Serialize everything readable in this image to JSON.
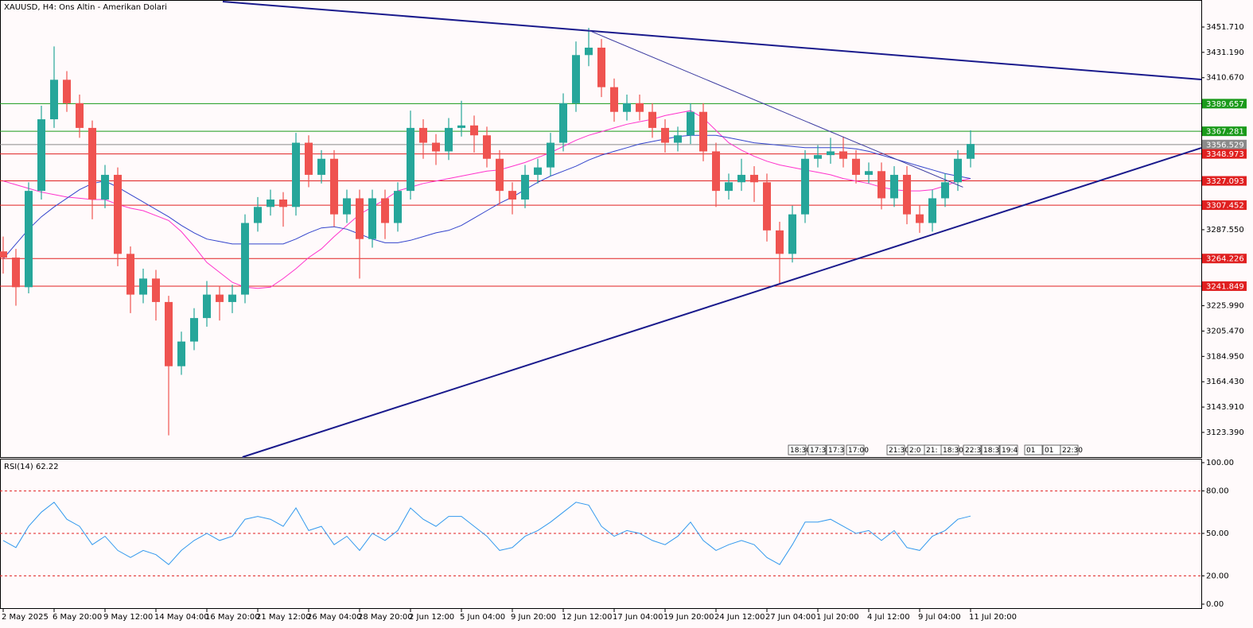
{
  "chart_data": {
    "type": "candlestick",
    "title": "XAUUSD, H4:  Ons Altin - Amerikan Dolari",
    "categories": [
      "2 May 2025",
      null,
      null,
      null,
      "6 May 20:00",
      null,
      null,
      null,
      "9 May 12:00",
      null,
      null,
      null,
      "14 May 04:00",
      null,
      null,
      null,
      "16 May 20:00",
      null,
      null,
      null,
      "21 May 12:00",
      null,
      null,
      null,
      "26 May 04:00",
      null,
      null,
      null,
      "28 May 20:00",
      null,
      null,
      null,
      "2 Jun 12:00",
      null,
      null,
      null,
      "5 Jun 04:00",
      null,
      null,
      null,
      "9 Jun 20:00",
      null,
      null,
      null,
      "12 Jun 12:00",
      null,
      null,
      null,
      "17 Jun 04:00",
      null,
      null,
      null,
      "19 Jun 20:00",
      null,
      null,
      null,
      "24 Jun 12:00",
      null,
      null,
      null,
      "27 Jun 04:00",
      null,
      null,
      null,
      "1 Jul 20:00",
      null,
      null,
      null,
      "4 Jul 12:00",
      null,
      null,
      null,
      "9 Jul 04:00",
      null,
      null,
      null,
      "11 Jul 20:00"
    ],
    "ohlc": [
      [
        3270,
        3282,
        3252,
        3265
      ],
      [
        3265,
        3272,
        3226,
        3241
      ],
      [
        3241,
        3326,
        3236,
        3319
      ],
      [
        3319,
        3388,
        3312,
        3377
      ],
      [
        3377,
        3436,
        3370,
        3409
      ],
      [
        3409,
        3416,
        3383,
        3390
      ],
      [
        3390,
        3397,
        3362,
        3370
      ],
      [
        3370,
        3376,
        3296,
        3312
      ],
      [
        3312,
        3340,
        3305,
        3332
      ],
      [
        3332,
        3338,
        3258,
        3268
      ],
      [
        3268,
        3274,
        3220,
        3235
      ],
      [
        3235,
        3256,
        3228,
        3248
      ],
      [
        3248,
        3255,
        3214,
        3229
      ],
      [
        3229,
        3234,
        3121,
        3177
      ],
      [
        3177,
        3205,
        3170,
        3197
      ],
      [
        3197,
        3224,
        3190,
        3216
      ],
      [
        3216,
        3246,
        3209,
        3235
      ],
      [
        3235,
        3242,
        3214,
        3229
      ],
      [
        3229,
        3243,
        3220,
        3235
      ],
      [
        3235,
        3300,
        3228,
        3293
      ],
      [
        3293,
        3314,
        3286,
        3306
      ],
      [
        3306,
        3320,
        3299,
        3312
      ],
      [
        3312,
        3318,
        3290,
        3306
      ],
      [
        3306,
        3366,
        3299,
        3358
      ],
      [
        3358,
        3364,
        3322,
        3332
      ],
      [
        3332,
        3352,
        3325,
        3345
      ],
      [
        3345,
        3352,
        3290,
        3300
      ],
      [
        3300,
        3320,
        3293,
        3313
      ],
      [
        3313,
        3320,
        3248,
        3280
      ],
      [
        3280,
        3320,
        3273,
        3313
      ],
      [
        3313,
        3320,
        3280,
        3293
      ],
      [
        3293,
        3326,
        3286,
        3319
      ],
      [
        3319,
        3384,
        3312,
        3370
      ],
      [
        3370,
        3377,
        3345,
        3358
      ],
      [
        3358,
        3365,
        3340,
        3351
      ],
      [
        3351,
        3378,
        3344,
        3370
      ],
      [
        3370,
        3392,
        3363,
        3372
      ],
      [
        3372,
        3380,
        3350,
        3364
      ],
      [
        3364,
        3371,
        3338,
        3345
      ],
      [
        3345,
        3352,
        3308,
        3319
      ],
      [
        3319,
        3326,
        3300,
        3312
      ],
      [
        3312,
        3340,
        3305,
        3332
      ],
      [
        3332,
        3345,
        3325,
        3338
      ],
      [
        3338,
        3366,
        3331,
        3358
      ],
      [
        3358,
        3398,
        3351,
        3390
      ],
      [
        3390,
        3440,
        3383,
        3429
      ],
      [
        3429,
        3451,
        3420,
        3435
      ],
      [
        3435,
        3442,
        3395,
        3403
      ],
      [
        3403,
        3410,
        3375,
        3383
      ],
      [
        3383,
        3397,
        3376,
        3390
      ],
      [
        3390,
        3397,
        3376,
        3383
      ],
      [
        3383,
        3390,
        3362,
        3370
      ],
      [
        3370,
        3377,
        3350,
        3358
      ],
      [
        3358,
        3371,
        3351,
        3364
      ],
      [
        3364,
        3390,
        3357,
        3383
      ],
      [
        3383,
        3390,
        3343,
        3351
      ],
      [
        3351,
        3358,
        3306,
        3319
      ],
      [
        3319,
        3333,
        3312,
        3326
      ],
      [
        3326,
        3345,
        3319,
        3332
      ],
      [
        3332,
        3339,
        3310,
        3326
      ],
      [
        3326,
        3333,
        3278,
        3287
      ],
      [
        3287,
        3294,
        3244,
        3268
      ],
      [
        3268,
        3307,
        3261,
        3300
      ],
      [
        3300,
        3352,
        3293,
        3345
      ],
      [
        3345,
        3356,
        3338,
        3348
      ],
      [
        3348,
        3362,
        3341,
        3351
      ],
      [
        3351,
        3363,
        3338,
        3345
      ],
      [
        3345,
        3352,
        3325,
        3332
      ],
      [
        3332,
        3342,
        3325,
        3335
      ],
      [
        3335,
        3342,
        3304,
        3313
      ],
      [
        3313,
        3339,
        3306,
        3332
      ],
      [
        3332,
        3339,
        3292,
        3300
      ],
      [
        3300,
        3307,
        3285,
        3293
      ],
      [
        3293,
        3320,
        3286,
        3313
      ],
      [
        3313,
        3333,
        3306,
        3326
      ],
      [
        3326,
        3352,
        3319,
        3345
      ],
      [
        3345,
        3368,
        3338,
        3357
      ]
    ],
    "up_color": "#26a69a",
    "down_color": "#ef5350",
    "ma_series": [
      {
        "color": "#ff33cc",
        "values": [
          3327,
          3324,
          3321,
          3318,
          3316,
          3314,
          3313,
          3312,
          3312,
          3308,
          3305,
          3303,
          3299,
          3295,
          3286,
          3274,
          3261,
          3253,
          3245,
          3241,
          3240,
          3241,
          3248,
          3256,
          3265,
          3272,
          3282,
          3291,
          3300,
          3306,
          3312,
          3319,
          3322,
          3325,
          3327,
          3329,
          3331,
          3333,
          3335,
          3336,
          3339,
          3342,
          3346,
          3350,
          3355,
          3360,
          3364,
          3367,
          3370,
          3373,
          3375,
          3377,
          3380,
          3382,
          3384,
          3378,
          3368,
          3358,
          3352,
          3347,
          3343,
          3340,
          3338,
          3336,
          3334,
          3332,
          3329,
          3327,
          3325,
          3322,
          3320,
          3319,
          3319,
          3320,
          3323,
          3327,
          3329
        ]
      },
      {
        "color": "#3344cc",
        "values": [
          3264,
          3276,
          3288,
          3298,
          3306,
          3313,
          3320,
          3325,
          3327,
          3322,
          3316,
          3310,
          3304,
          3298,
          3291,
          3285,
          3280,
          3278,
          3276,
          3276,
          3276,
          3276,
          3276,
          3280,
          3285,
          3289,
          3290,
          3288,
          3284,
          3280,
          3277,
          3277,
          3279,
          3282,
          3285,
          3287,
          3291,
          3297,
          3303,
          3309,
          3314,
          3320,
          3326,
          3331,
          3335,
          3339,
          3344,
          3348,
          3351,
          3354,
          3357,
          3359,
          3361,
          3363,
          3364,
          3364,
          3364,
          3362,
          3360,
          3358,
          3357,
          3356,
          3355,
          3354,
          3354,
          3354,
          3354,
          3353,
          3351,
          3348,
          3345,
          3342,
          3339,
          3336,
          3333,
          3331,
          3329
        ]
      }
    ],
    "trendlines": [
      {
        "color": "#1a1a8c",
        "width": 2,
        "x": [
          17.25,
          94.125
        ],
        "y": [
          3472.3,
          3409.2
        ]
      },
      {
        "color": "#1a1a8c",
        "width": 2,
        "x": [
          18.8,
          94.125
        ],
        "y": [
          3103.4,
          3353.8
        ]
      },
      {
        "color": "#3a3aa0",
        "width": 1,
        "x": [
          46,
          75.4
        ],
        "y": [
          3449,
          3322
        ]
      }
    ],
    "levels": [
      {
        "value": 3389.657,
        "color": "#1a9a1a"
      },
      {
        "value": 3367.281,
        "color": "#1a9a1a"
      },
      {
        "value": 3356.529,
        "color": "#8a8a8a"
      },
      {
        "value": 3348.973,
        "color": "#e02020"
      },
      {
        "value": 3327.093,
        "color": "#e02020"
      },
      {
        "value": 3307.452,
        "color": "#e02020"
      },
      {
        "value": 3264.226,
        "color": "#e02020"
      },
      {
        "value": 3241.849,
        "color": "#e02020"
      }
    ],
    "time_tags": [
      "18:30",
      "17:3",
      "17:3",
      "17:00",
      "21:30",
      "2:0",
      "21:",
      "18:30",
      "22:3",
      "18:3",
      "19:4",
      "01",
      "01",
      "22:30"
    ],
    "xlim": [
      -0.25,
      94.125
    ],
    "ylim": [
      3103.4,
      3473.6
    ],
    "yticks": [
      {
        "value": 3451.71,
        "label": "3451.710"
      },
      {
        "value": 3431.19,
        "label": "3431.190"
      },
      {
        "value": 3410.67,
        "label": "3410.670"
      },
      {
        "value": 3287.55,
        "label": "3287.550"
      },
      {
        "value": 3225.99,
        "label": "3225.990"
      },
      {
        "value": 3205.47,
        "label": "3205.470"
      },
      {
        "value": 3184.95,
        "label": "3184.950"
      },
      {
        "value": 3164.43,
        "label": "3164.430"
      },
      {
        "value": 3143.91,
        "label": "3143.910"
      },
      {
        "value": 3123.39,
        "label": "3123.390"
      }
    ],
    "rsi": {
      "label": "RSI(14) 62.22",
      "color": "#3399ee",
      "level_color": "#e02020",
      "values": [
        45,
        40,
        55,
        65,
        72,
        60,
        55,
        42,
        48,
        38,
        33,
        38,
        35,
        28,
        38,
        45,
        50,
        45,
        48,
        60,
        62,
        60,
        55,
        68,
        52,
        55,
        42,
        48,
        38,
        50,
        45,
        52,
        68,
        60,
        55,
        62,
        62,
        55,
        48,
        38,
        40,
        48,
        52,
        58,
        65,
        72,
        70,
        55,
        48,
        52,
        50,
        45,
        42,
        48,
        58,
        45,
        38,
        42,
        45,
        42,
        33,
        28,
        42,
        58,
        58,
        60,
        55,
        50,
        52,
        45,
        52,
        40,
        38,
        48,
        52,
        60,
        62.22
      ],
      "ylim": [
        0,
        100
      ],
      "yticks": [
        {
          "value": 100,
          "label": "100.00"
        },
        {
          "value": 80,
          "label": "80.00"
        },
        {
          "value": 50,
          "label": "50.00"
        },
        {
          "value": 20,
          "label": "20.00"
        },
        {
          "value": 0,
          "label": "0.00"
        }
      ]
    }
  }
}
